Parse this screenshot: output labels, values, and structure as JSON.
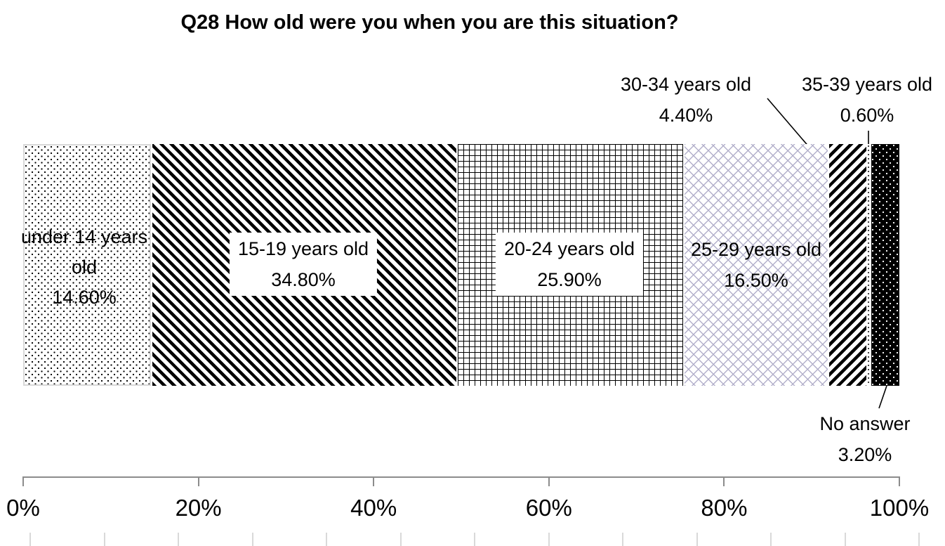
{
  "chart_data": {
    "type": "bar",
    "orientation": "horizontal",
    "stacked": true,
    "title": "Q28 How old were you when you are this situation?",
    "xlabel": "",
    "ylabel": "",
    "x_axis": {
      "ticks": [
        "0%",
        "20%",
        "40%",
        "60%",
        "80%",
        "100%"
      ],
      "range_pct": [
        0,
        100
      ]
    },
    "segments": [
      {
        "label": "under 14 years old",
        "value": 14.6,
        "pct_label": "14.60%",
        "pattern": "dots",
        "label_placement": "inside",
        "label_lines": [
          "under 14 years",
          "old",
          "14.60%"
        ]
      },
      {
        "label": "15-19 years old",
        "value": 34.8,
        "pct_label": "34.80%",
        "pattern": "stripes-backslash",
        "label_placement": "inside-box"
      },
      {
        "label": "20-24 years old",
        "value": 25.9,
        "pct_label": "25.90%",
        "pattern": "grid",
        "label_placement": "inside-box"
      },
      {
        "label": "25-29 years old",
        "value": 16.5,
        "pct_label": "16.50%",
        "pattern": "diamond-lattice",
        "label_placement": "inside"
      },
      {
        "label": "30-34 years old",
        "value": 4.4,
        "pct_label": "4.40%",
        "pattern": "stripes-slash",
        "label_placement": "callout-top"
      },
      {
        "label": "35-39 years old",
        "value": 0.6,
        "pct_label": "0.60%",
        "pattern": "fine-dots",
        "label_placement": "callout-top"
      },
      {
        "label": "No answer",
        "value": 3.2,
        "pct_label": "3.20%",
        "pattern": "white-dots-on-black",
        "label_placement": "callout-bottom"
      }
    ],
    "colors": {
      "pattern_foreground": "#000000",
      "diamond_lattice": "#b3b0cb",
      "axis_line": "#8c8c8c",
      "segment_border": "#d9d9d9",
      "minor_tick": "#d9d9d9",
      "background": "#ffffff"
    },
    "legend": "none"
  }
}
